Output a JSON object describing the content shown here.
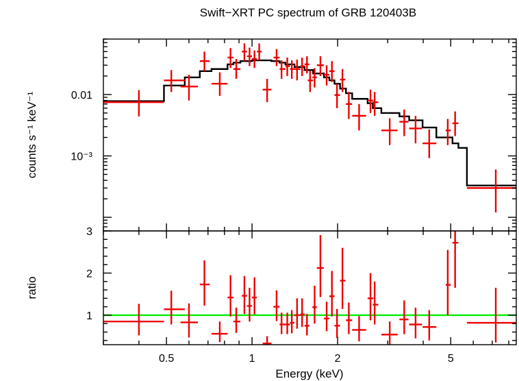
{
  "chart_data": {
    "type": "scatter",
    "title": "Swift−XRT PC spectrum of GRB 120403B",
    "xlabel": "Energy (keV)",
    "x_scale": "log",
    "xlim": [
      0.3,
      8.5
    ],
    "x_ticks": [
      {
        "value": 0.5,
        "label": "0.5"
      },
      {
        "value": 1,
        "label": "1"
      },
      {
        "value": 2,
        "label": "2"
      },
      {
        "value": 5,
        "label": "5"
      }
    ],
    "colors": {
      "data": "#ee0000",
      "model": "#000000",
      "unity": "#00ee00",
      "axes": "#000000"
    },
    "spectrum_panel": {
      "ylabel": "counts s⁻¹ keV⁻¹",
      "y_scale": "log",
      "ylim": [
        6e-05,
        0.08
      ],
      "y_ticks": [
        {
          "value": 0.01,
          "label": "0.01"
        },
        {
          "value": 0.001,
          "label": "10⁻³"
        }
      ],
      "data_points": [
        {
          "x": 0.4,
          "xlo": 0.3,
          "xhi": 0.49,
          "y": 0.0075,
          "ylo": 0.0044,
          "yhi": 0.0118
        },
        {
          "x": 0.52,
          "xlo": 0.49,
          "xhi": 0.58,
          "y": 0.017,
          "ylo": 0.011,
          "yhi": 0.025
        },
        {
          "x": 0.6,
          "xlo": 0.56,
          "xhi": 0.645,
          "y": 0.0135,
          "ylo": 0.008,
          "yhi": 0.021
        },
        {
          "x": 0.68,
          "xlo": 0.655,
          "xhi": 0.71,
          "y": 0.035,
          "ylo": 0.024,
          "yhi": 0.05
        },
        {
          "x": 0.77,
          "xlo": 0.72,
          "xhi": 0.82,
          "y": 0.015,
          "ylo": 0.0095,
          "yhi": 0.023
        },
        {
          "x": 0.84,
          "xlo": 0.82,
          "xhi": 0.86,
          "y": 0.04,
          "ylo": 0.027,
          "yhi": 0.057
        },
        {
          "x": 0.88,
          "xlo": 0.86,
          "xhi": 0.91,
          "y": 0.026,
          "ylo": 0.018,
          "yhi": 0.038
        },
        {
          "x": 0.94,
          "xlo": 0.92,
          "xhi": 0.96,
          "y": 0.05,
          "ylo": 0.035,
          "yhi": 0.068
        },
        {
          "x": 0.98,
          "xlo": 0.96,
          "xhi": 1.0,
          "y": 0.042,
          "ylo": 0.029,
          "yhi": 0.058
        },
        {
          "x": 1.02,
          "xlo": 1.0,
          "xhi": 1.04,
          "y": 0.038,
          "ylo": 0.027,
          "yhi": 0.052
        },
        {
          "x": 1.06,
          "xlo": 1.04,
          "xhi": 1.08,
          "y": 0.05,
          "ylo": 0.036,
          "yhi": 0.068
        },
        {
          "x": 1.13,
          "xlo": 1.09,
          "xhi": 1.17,
          "y": 0.012,
          "ylo": 0.0075,
          "yhi": 0.018
        },
        {
          "x": 1.22,
          "xlo": 1.19,
          "xhi": 1.25,
          "y": 0.04,
          "ylo": 0.029,
          "yhi": 0.055
        },
        {
          "x": 1.27,
          "xlo": 1.25,
          "xhi": 1.31,
          "y": 0.026,
          "ylo": 0.018,
          "yhi": 0.036
        },
        {
          "x": 1.33,
          "xlo": 1.31,
          "xhi": 1.36,
          "y": 0.029,
          "ylo": 0.02,
          "yhi": 0.04
        },
        {
          "x": 1.38,
          "xlo": 1.36,
          "xhi": 1.41,
          "y": 0.026,
          "ylo": 0.018,
          "yhi": 0.036
        },
        {
          "x": 1.44,
          "xlo": 1.41,
          "xhi": 1.48,
          "y": 0.026,
          "ylo": 0.017,
          "yhi": 0.037
        },
        {
          "x": 1.5,
          "xlo": 1.48,
          "xhi": 1.53,
          "y": 0.029,
          "ylo": 0.02,
          "yhi": 0.04
        },
        {
          "x": 1.56,
          "xlo": 1.53,
          "xhi": 1.59,
          "y": 0.031,
          "ylo": 0.022,
          "yhi": 0.042
        },
        {
          "x": 1.6,
          "xlo": 1.57,
          "xhi": 1.64,
          "y": 0.017,
          "ylo": 0.011,
          "yhi": 0.024
        },
        {
          "x": 1.66,
          "xlo": 1.63,
          "xhi": 1.69,
          "y": 0.019,
          "ylo": 0.013,
          "yhi": 0.027
        },
        {
          "x": 1.74,
          "xlo": 1.69,
          "xhi": 1.79,
          "y": 0.03,
          "ylo": 0.02,
          "yhi": 0.042
        },
        {
          "x": 1.83,
          "xlo": 1.79,
          "xhi": 1.87,
          "y": 0.021,
          "ylo": 0.014,
          "yhi": 0.03
        },
        {
          "x": 1.91,
          "xlo": 1.87,
          "xhi": 1.95,
          "y": 0.024,
          "ylo": 0.016,
          "yhi": 0.035
        },
        {
          "x": 1.99,
          "xlo": 1.95,
          "xhi": 2.04,
          "y": 0.0098,
          "ylo": 0.006,
          "yhi": 0.015
        },
        {
          "x": 2.08,
          "xlo": 2.04,
          "xhi": 2.13,
          "y": 0.0175,
          "ylo": 0.011,
          "yhi": 0.026
        },
        {
          "x": 2.19,
          "xlo": 2.14,
          "xhi": 2.25,
          "y": 0.007,
          "ylo": 0.004,
          "yhi": 0.011
        },
        {
          "x": 2.38,
          "xlo": 2.25,
          "xhi": 2.52,
          "y": 0.0045,
          "ylo": 0.0026,
          "yhi": 0.007
        },
        {
          "x": 2.61,
          "xlo": 2.55,
          "xhi": 2.67,
          "y": 0.008,
          "ylo": 0.005,
          "yhi": 0.012
        },
        {
          "x": 2.7,
          "xlo": 2.66,
          "xhi": 2.78,
          "y": 0.0075,
          "ylo": 0.0045,
          "yhi": 0.011
        },
        {
          "x": 3.05,
          "xlo": 2.85,
          "xhi": 3.25,
          "y": 0.0026,
          "ylo": 0.0015,
          "yhi": 0.0041
        },
        {
          "x": 3.43,
          "xlo": 3.3,
          "xhi": 3.55,
          "y": 0.0036,
          "ylo": 0.0021,
          "yhi": 0.0057
        },
        {
          "x": 3.76,
          "xlo": 3.57,
          "xhi": 3.96,
          "y": 0.0028,
          "ylo": 0.0016,
          "yhi": 0.0045
        },
        {
          "x": 4.2,
          "xlo": 3.98,
          "xhi": 4.45,
          "y": 0.0016,
          "ylo": 0.00092,
          "yhi": 0.0027
        },
        {
          "x": 4.88,
          "xlo": 4.8,
          "xhi": 5.0,
          "y": 0.0026,
          "ylo": 0.0015,
          "yhi": 0.004
        },
        {
          "x": 5.18,
          "xlo": 5.07,
          "xhi": 5.32,
          "y": 0.0034,
          "ylo": 0.0021,
          "yhi": 0.0053
        },
        {
          "x": 7.2,
          "xlo": 5.7,
          "xhi": 8.5,
          "y": 0.0003,
          "ylo": 0.00012,
          "yhi": 0.0006
        }
      ],
      "model_steps": [
        {
          "xlo": 0.3,
          "xhi": 0.49,
          "y": 0.0078
        },
        {
          "xlo": 0.49,
          "xhi": 0.58,
          "y": 0.014
        },
        {
          "xlo": 0.58,
          "xhi": 0.655,
          "y": 0.019
        },
        {
          "xlo": 0.655,
          "xhi": 0.72,
          "y": 0.024
        },
        {
          "xlo": 0.72,
          "xhi": 0.82,
          "y": 0.026
        },
        {
          "xlo": 0.82,
          "xhi": 0.86,
          "y": 0.031
        },
        {
          "xlo": 0.86,
          "xhi": 0.91,
          "y": 0.033
        },
        {
          "xlo": 0.91,
          "xhi": 1.0,
          "y": 0.035
        },
        {
          "xlo": 1.0,
          "xhi": 1.08,
          "y": 0.036
        },
        {
          "xlo": 1.08,
          "xhi": 1.17,
          "y": 0.036
        },
        {
          "xlo": 1.17,
          "xhi": 1.25,
          "y": 0.035
        },
        {
          "xlo": 1.25,
          "xhi": 1.31,
          "y": 0.033
        },
        {
          "xlo": 1.31,
          "xhi": 1.41,
          "y": 0.031
        },
        {
          "xlo": 1.41,
          "xhi": 1.53,
          "y": 0.028
        },
        {
          "xlo": 1.53,
          "xhi": 1.64,
          "y": 0.025
        },
        {
          "xlo": 1.64,
          "xhi": 1.79,
          "y": 0.022
        },
        {
          "xlo": 1.79,
          "xhi": 1.87,
          "y": 0.019
        },
        {
          "xlo": 1.87,
          "xhi": 1.95,
          "y": 0.017
        },
        {
          "xlo": 1.95,
          "xhi": 2.04,
          "y": 0.015
        },
        {
          "xlo": 2.04,
          "xhi": 2.14,
          "y": 0.0125
        },
        {
          "xlo": 2.14,
          "xhi": 2.25,
          "y": 0.0105
        },
        {
          "xlo": 2.25,
          "xhi": 2.55,
          "y": 0.0085
        },
        {
          "xlo": 2.55,
          "xhi": 2.66,
          "y": 0.0072
        },
        {
          "xlo": 2.66,
          "xhi": 2.85,
          "y": 0.006
        },
        {
          "xlo": 2.85,
          "xhi": 3.3,
          "y": 0.005
        },
        {
          "xlo": 3.3,
          "xhi": 3.57,
          "y": 0.0044
        },
        {
          "xlo": 3.57,
          "xhi": 3.98,
          "y": 0.0038
        },
        {
          "xlo": 3.98,
          "xhi": 4.45,
          "y": 0.0029
        },
        {
          "xlo": 4.45,
          "xhi": 5.07,
          "y": 0.002
        },
        {
          "xlo": 5.07,
          "xhi": 5.32,
          "y": 0.0016
        },
        {
          "xlo": 5.32,
          "xhi": 5.7,
          "y": 0.00135
        },
        {
          "xlo": 5.7,
          "xhi": 8.5,
          "y": 0.00033
        }
      ]
    },
    "ratio_panel": {
      "ylabel": "ratio",
      "y_scale": "linear",
      "ylim": [
        0.3,
        3.0
      ],
      "y_ticks": [
        {
          "value": 1,
          "label": "1"
        },
        {
          "value": 2,
          "label": "2"
        },
        {
          "value": 3,
          "label": "3"
        }
      ],
      "unity_line": 1,
      "data_points": [
        {
          "x": 0.4,
          "xlo": 0.3,
          "xhi": 0.49,
          "y": 0.85,
          "ylo": 0.52,
          "yhi": 1.27
        },
        {
          "x": 0.52,
          "xlo": 0.49,
          "xhi": 0.58,
          "y": 1.14,
          "ylo": 0.78,
          "yhi": 1.58
        },
        {
          "x": 0.6,
          "xlo": 0.56,
          "xhi": 0.645,
          "y": 0.83,
          "ylo": 0.47,
          "yhi": 1.28
        },
        {
          "x": 0.68,
          "xlo": 0.655,
          "xhi": 0.71,
          "y": 1.73,
          "ylo": 1.23,
          "yhi": 2.3
        },
        {
          "x": 0.77,
          "xlo": 0.72,
          "xhi": 0.82,
          "y": 0.56,
          "ylo": 0.36,
          "yhi": 0.85
        },
        {
          "x": 0.84,
          "xlo": 0.82,
          "xhi": 0.86,
          "y": 1.42,
          "ylo": 0.97,
          "yhi": 1.95
        },
        {
          "x": 0.88,
          "xlo": 0.86,
          "xhi": 0.91,
          "y": 0.85,
          "ylo": 0.58,
          "yhi": 1.18
        },
        {
          "x": 0.94,
          "xlo": 0.92,
          "xhi": 0.96,
          "y": 1.46,
          "ylo": 1.03,
          "yhi": 1.93
        },
        {
          "x": 0.98,
          "xlo": 0.96,
          "xhi": 1.0,
          "y": 1.22,
          "ylo": 0.85,
          "yhi": 1.65
        },
        {
          "x": 1.02,
          "xlo": 1.0,
          "xhi": 1.04,
          "y": 1.42,
          "ylo": 1.02,
          "yhi": 1.9
        },
        {
          "x": 1.13,
          "xlo": 1.09,
          "xhi": 1.17,
          "y": 0.33,
          "ylo": 0.21,
          "yhi": 0.5
        },
        {
          "x": 1.22,
          "xlo": 1.19,
          "xhi": 1.25,
          "y": 1.2,
          "ylo": 0.86,
          "yhi": 1.59
        },
        {
          "x": 1.27,
          "xlo": 1.25,
          "xhi": 1.31,
          "y": 0.78,
          "ylo": 0.55,
          "yhi": 1.06
        },
        {
          "x": 1.33,
          "xlo": 1.31,
          "xhi": 1.36,
          "y": 0.78,
          "ylo": 0.55,
          "yhi": 1.06
        },
        {
          "x": 1.38,
          "xlo": 1.36,
          "xhi": 1.41,
          "y": 0.82,
          "ylo": 0.57,
          "yhi": 1.12
        },
        {
          "x": 1.44,
          "xlo": 1.41,
          "xhi": 1.48,
          "y": 1.0,
          "ylo": 0.68,
          "yhi": 1.4
        },
        {
          "x": 1.5,
          "xlo": 1.48,
          "xhi": 1.53,
          "y": 1.02,
          "ylo": 0.72,
          "yhi": 1.4
        },
        {
          "x": 1.56,
          "xlo": 1.53,
          "xhi": 1.59,
          "y": 0.75,
          "ylo": 0.52,
          "yhi": 1.03
        },
        {
          "x": 1.66,
          "xlo": 1.63,
          "xhi": 1.69,
          "y": 1.19,
          "ylo": 0.8,
          "yhi": 1.7
        },
        {
          "x": 1.74,
          "xlo": 1.69,
          "xhi": 1.79,
          "y": 2.12,
          "ylo": 1.43,
          "yhi": 2.9
        },
        {
          "x": 1.83,
          "xlo": 1.79,
          "xhi": 1.87,
          "y": 0.92,
          "ylo": 0.62,
          "yhi": 1.32
        },
        {
          "x": 1.91,
          "xlo": 1.87,
          "xhi": 1.95,
          "y": 1.45,
          "ylo": 0.97,
          "yhi": 2.05
        },
        {
          "x": 1.99,
          "xlo": 1.95,
          "xhi": 2.04,
          "y": 0.75,
          "ylo": 0.46,
          "yhi": 1.15
        },
        {
          "x": 2.08,
          "xlo": 2.04,
          "xhi": 2.13,
          "y": 1.82,
          "ylo": 1.15,
          "yhi": 2.6
        },
        {
          "x": 2.19,
          "xlo": 2.14,
          "xhi": 2.25,
          "y": 0.88,
          "ylo": 0.55,
          "yhi": 1.3
        },
        {
          "x": 2.38,
          "xlo": 2.25,
          "xhi": 2.52,
          "y": 0.65,
          "ylo": 0.38,
          "yhi": 0.98
        },
        {
          "x": 2.61,
          "xlo": 2.55,
          "xhi": 2.67,
          "y": 1.4,
          "ylo": 0.88,
          "yhi": 2.0
        },
        {
          "x": 2.7,
          "xlo": 2.66,
          "xhi": 2.78,
          "y": 1.25,
          "ylo": 0.78,
          "yhi": 1.8
        },
        {
          "x": 3.05,
          "xlo": 2.85,
          "xhi": 3.25,
          "y": 0.54,
          "ylo": 0.3,
          "yhi": 0.85
        },
        {
          "x": 3.43,
          "xlo": 3.3,
          "xhi": 3.55,
          "y": 0.9,
          "ylo": 0.55,
          "yhi": 1.35
        },
        {
          "x": 3.76,
          "xlo": 3.57,
          "xhi": 3.96,
          "y": 0.78,
          "ylo": 0.45,
          "yhi": 1.18
        },
        {
          "x": 4.2,
          "xlo": 3.98,
          "xhi": 4.45,
          "y": 0.72,
          "ylo": 0.4,
          "yhi": 1.12
        },
        {
          "x": 4.88,
          "xlo": 4.8,
          "xhi": 5.0,
          "y": 1.72,
          "ylo": 1.0,
          "yhi": 2.55
        },
        {
          "x": 5.18,
          "xlo": 5.07,
          "xhi": 5.32,
          "y": 2.72,
          "ylo": 1.65,
          "yhi": 3.0
        },
        {
          "x": 7.2,
          "xlo": 5.7,
          "xhi": 8.5,
          "y": 0.82,
          "ylo": 0.35,
          "yhi": 1.65
        }
      ]
    }
  }
}
